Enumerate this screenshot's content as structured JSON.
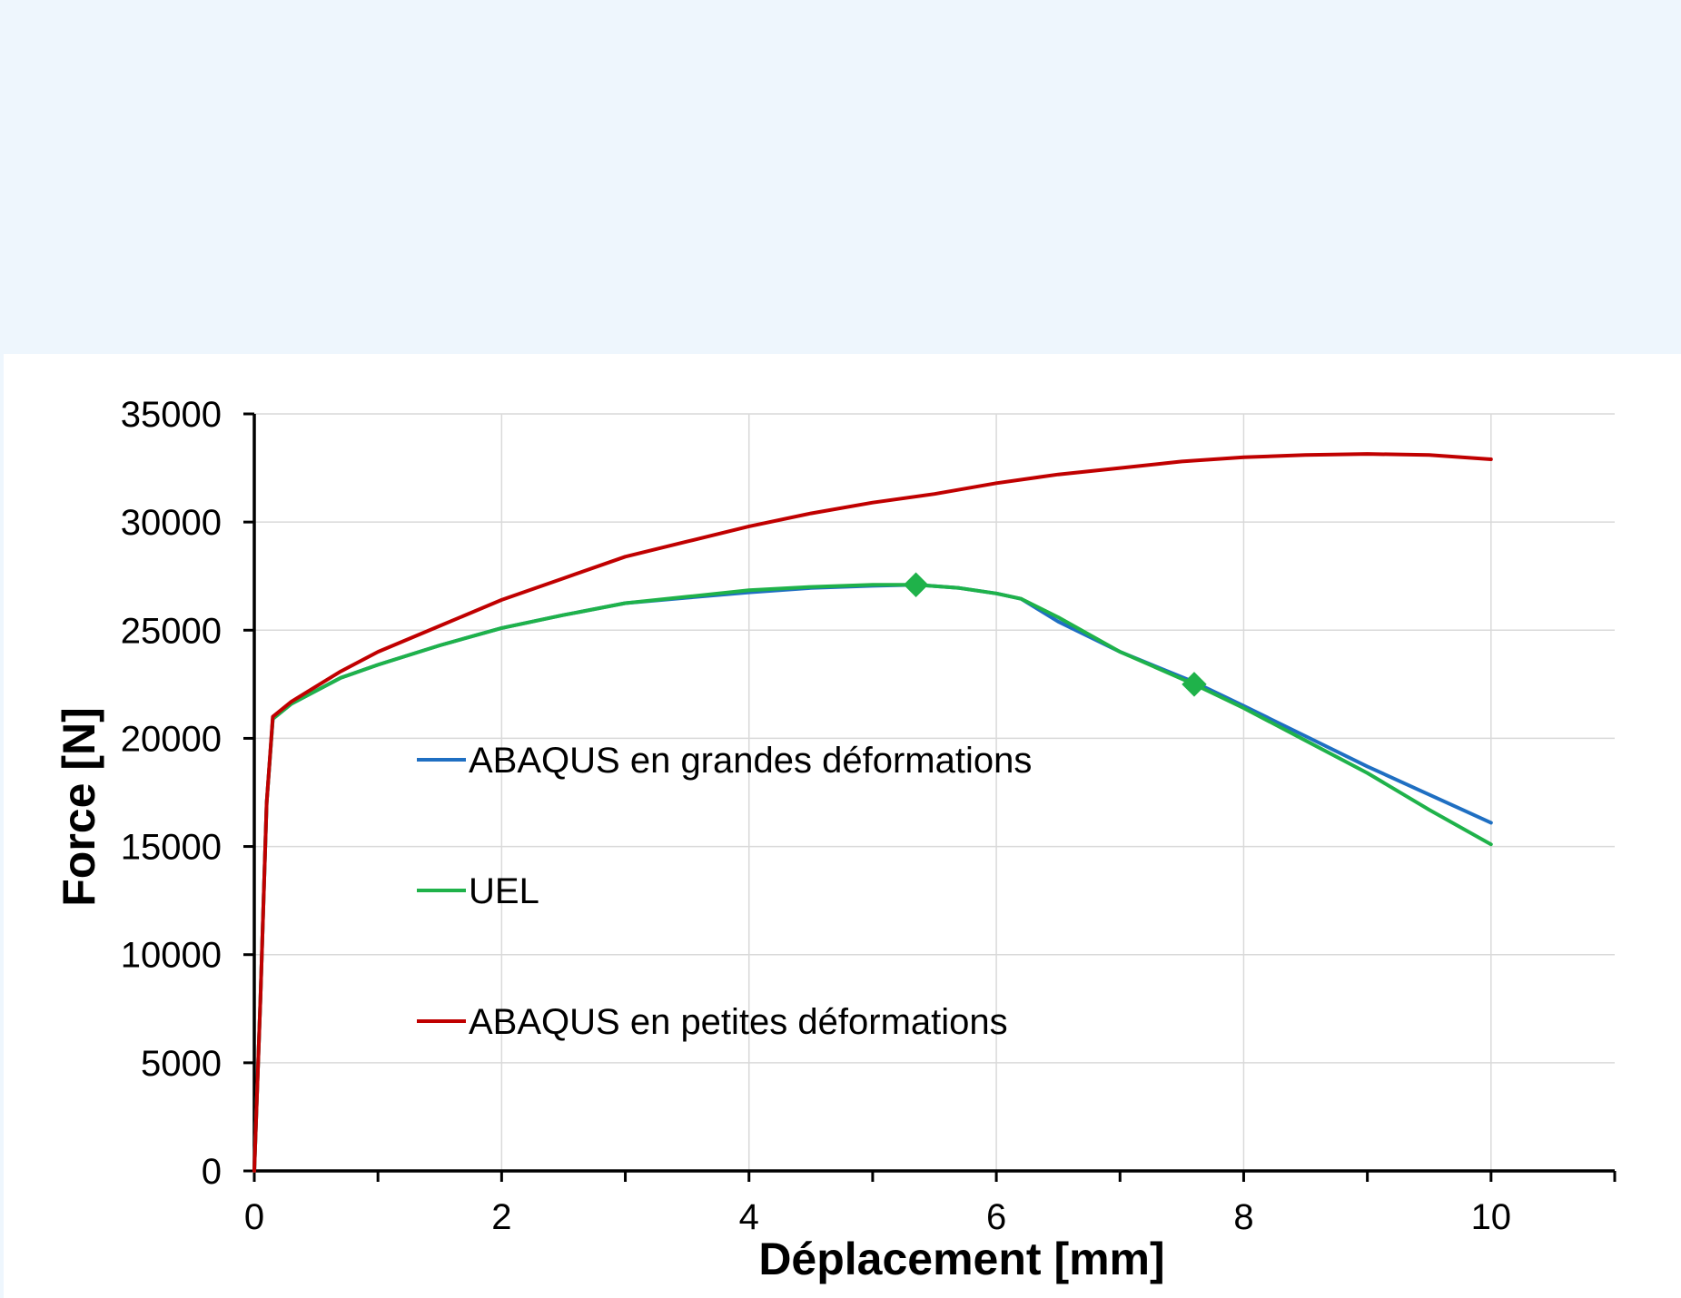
{
  "chart_data": {
    "type": "line",
    "title": "",
    "xlabel": "Déplacement [mm]",
    "ylabel": "Force [N]",
    "xlim": [
      0,
      11
    ],
    "ylim": [
      0,
      35000
    ],
    "x_ticks": [
      0,
      2,
      4,
      6,
      8,
      10
    ],
    "y_ticks": [
      0,
      5000,
      10000,
      15000,
      20000,
      25000,
      30000,
      35000
    ],
    "grid": true,
    "legend_position": "center-left inside plot",
    "series": [
      {
        "name": "ABAQUS en grandes déformations",
        "color": "#1f6fc2",
        "x": [
          0,
          0.05,
          0.1,
          0.15,
          0.3,
          0.7,
          1.0,
          1.5,
          2.0,
          2.5,
          3.0,
          3.5,
          4.0,
          4.5,
          5.0,
          5.35,
          5.7,
          6.0,
          6.2,
          6.5,
          7.0,
          7.6,
          8.0,
          8.5,
          9.0,
          9.5,
          10.0
        ],
        "y": [
          0,
          8000,
          17000,
          20900,
          21600,
          22800,
          23400,
          24300,
          25100,
          25700,
          26250,
          26500,
          26750,
          26950,
          27050,
          27100,
          26950,
          26700,
          26450,
          25400,
          24000,
          22600,
          21500,
          20100,
          18700,
          17400,
          16100
        ]
      },
      {
        "name": "UEL",
        "color": "#1fb24a",
        "x": [
          0,
          0.05,
          0.1,
          0.15,
          0.3,
          0.7,
          1.0,
          1.5,
          2.0,
          2.5,
          3.0,
          3.5,
          4.0,
          4.5,
          5.0,
          5.35,
          5.7,
          6.0,
          6.2,
          6.5,
          7.0,
          7.6,
          8.0,
          8.5,
          9.0,
          9.5,
          10.0
        ],
        "y": [
          0,
          8000,
          17000,
          20900,
          21600,
          22800,
          23400,
          24300,
          25100,
          25700,
          26250,
          26550,
          26850,
          27000,
          27100,
          27100,
          26950,
          26700,
          26450,
          25600,
          24000,
          22500,
          21400,
          19900,
          18400,
          16700,
          15100
        ]
      },
      {
        "name": "ABAQUS en petites déformations",
        "color": "#c00000",
        "x": [
          0,
          0.05,
          0.1,
          0.15,
          0.3,
          0.7,
          1.0,
          1.5,
          2.0,
          2.5,
          3.0,
          3.5,
          4.0,
          4.5,
          5.0,
          5.5,
          6.0,
          6.5,
          7.0,
          7.5,
          8.0,
          8.5,
          9.0,
          9.5,
          10.0
        ],
        "y": [
          0,
          8000,
          17000,
          21000,
          21700,
          23100,
          24000,
          25200,
          26400,
          27400,
          28400,
          29100,
          29800,
          30400,
          30900,
          31300,
          31800,
          32200,
          32500,
          32800,
          33000,
          33100,
          33150,
          33100,
          32900
        ]
      }
    ],
    "markers": [
      {
        "series": "UEL",
        "shape": "diamond",
        "x": 5.35,
        "y": 27100
      },
      {
        "series": "UEL",
        "shape": "diamond",
        "x": 7.6,
        "y": 22500
      }
    ]
  }
}
